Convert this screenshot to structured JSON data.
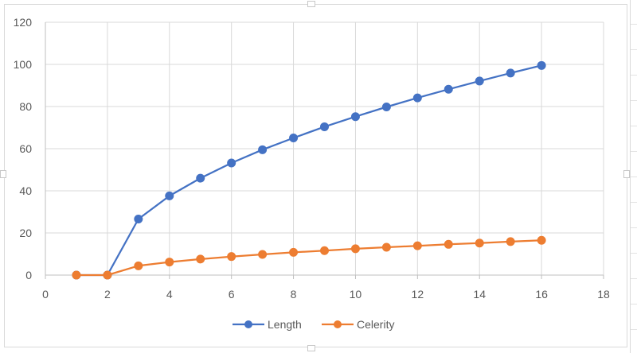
{
  "chart_data": {
    "type": "scatter",
    "title": "",
    "xlabel": "",
    "ylabel": "",
    "xlim": [
      0,
      18
    ],
    "ylim": [
      0,
      120
    ],
    "x_ticks": [
      0,
      2,
      4,
      6,
      8,
      10,
      12,
      14,
      16,
      18
    ],
    "y_ticks": [
      0,
      20,
      40,
      60,
      80,
      100,
      120
    ],
    "grid": true,
    "legend_position": "bottom",
    "lines_with_markers": true,
    "series": [
      {
        "name": "Length",
        "color": "#4472C4",
        "x": [
          1,
          2,
          3,
          4,
          5,
          6,
          7,
          8,
          9,
          10,
          11,
          12,
          13,
          14,
          15,
          16
        ],
        "y": [
          0,
          0,
          26.6,
          37.6,
          46.0,
          53.2,
          59.5,
          65.1,
          70.4,
          75.2,
          79.8,
          84.1,
          88.2,
          92.1,
          95.9,
          99.5
        ]
      },
      {
        "name": "Celerity",
        "color": "#ED7D31",
        "x": [
          1,
          2,
          3,
          4,
          5,
          6,
          7,
          8,
          9,
          10,
          11,
          12,
          13,
          14,
          15,
          16
        ],
        "y": [
          0,
          0,
          4.4,
          6.2,
          7.6,
          8.8,
          9.8,
          10.8,
          11.6,
          12.5,
          13.2,
          13.9,
          14.6,
          15.2,
          15.9,
          16.5
        ]
      }
    ]
  }
}
